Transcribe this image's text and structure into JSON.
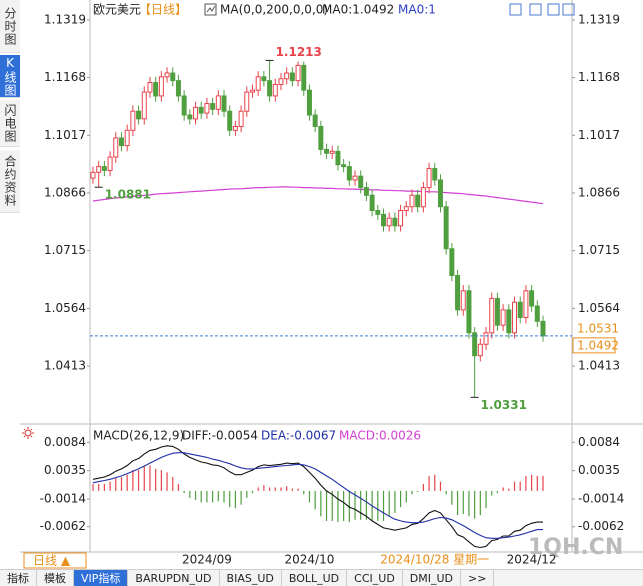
{
  "sidebar": {
    "tabs": [
      "分时图",
      "K线图",
      "闪电图",
      "合约资料"
    ],
    "selected": 1
  },
  "header": {
    "symbol": "欧元美元",
    "period": "【日线】",
    "indicator": "MA(0,0,200,0,0,0)",
    "ma_value": "MA0:1.0492",
    "ma_count": "MA0:1"
  },
  "chart_data": [
    {
      "type": "candlestick",
      "categories": [
        null,
        null,
        null,
        null,
        null,
        null,
        null,
        null,
        null,
        null,
        null,
        null,
        null,
        null,
        null,
        null,
        null,
        null,
        null,
        null,
        "2024/09",
        null,
        null,
        null,
        null,
        null,
        null,
        null,
        null,
        null,
        null,
        null,
        null,
        null,
        null,
        null,
        null,
        null,
        "2024/10",
        null,
        null,
        null,
        null,
        null,
        null,
        null,
        null,
        null,
        null,
        null,
        null,
        null,
        null,
        null,
        null,
        null,
        null,
        null,
        null,
        null,
        null,
        null,
        null,
        null,
        null,
        null,
        null,
        null,
        null,
        null,
        null,
        null,
        null,
        null,
        null,
        null,
        null,
        "2024/12",
        null,
        null
      ],
      "open": [
        1.0905,
        1.092,
        1.0935,
        1.0925,
        1.096,
        1.101,
        1.099,
        1.103,
        1.108,
        1.106,
        1.113,
        1.1155,
        1.112,
        1.117,
        1.118,
        1.116,
        1.112,
        1.107,
        1.106,
        1.109,
        1.1075,
        1.11,
        1.1085,
        1.112,
        1.108,
        1.103,
        1.104,
        1.108,
        1.113,
        1.1135,
        1.117,
        1.116,
        1.112,
        1.115,
        1.1165,
        1.118,
        1.116,
        1.12,
        1.1135,
        1.107,
        1.104,
        1.098,
        1.097,
        1.0975,
        1.094,
        1.0935,
        1.09,
        1.091,
        1.088,
        1.086,
        1.082,
        1.081,
        1.078,
        1.08,
        1.078,
        1.082,
        1.083,
        1.086,
        1.083,
        1.088,
        1.093,
        1.09,
        1.083,
        1.072,
        1.065,
        1.056,
        1.061,
        1.05,
        1.044,
        1.047,
        1.05,
        1.059,
        1.052,
        1.056,
        1.05,
        1.058,
        1.054,
        1.061,
        1.057,
        1.053
      ],
      "high": [
        1.0935,
        1.095,
        1.095,
        1.0975,
        1.1025,
        1.1025,
        1.1045,
        1.1095,
        1.1095,
        1.1145,
        1.117,
        1.117,
        1.1185,
        1.1195,
        1.1195,
        1.1175,
        1.1135,
        1.1085,
        1.1105,
        1.1105,
        1.1115,
        1.1115,
        1.1135,
        1.1135,
        1.1095,
        1.1055,
        1.1095,
        1.1145,
        1.115,
        1.1185,
        1.1185,
        1.1213,
        1.1165,
        1.118,
        1.1195,
        1.1195,
        1.121,
        1.121,
        1.115,
        1.1085,
        1.1055,
        1.0995,
        1.099,
        1.099,
        1.0955,
        1.095,
        1.0925,
        1.0925,
        1.0895,
        1.0875,
        1.0835,
        1.0825,
        1.0815,
        1.0815,
        1.0835,
        1.0845,
        1.0875,
        1.0875,
        1.0895,
        1.0945,
        1.0945,
        1.0915,
        1.0845,
        1.0735,
        1.0665,
        1.0625,
        1.0625,
        1.0515,
        1.0485,
        1.0515,
        1.0605,
        1.0605,
        1.0575,
        1.0575,
        1.0595,
        1.0595,
        1.0625,
        1.0625,
        1.0585,
        1.0545
      ],
      "low": [
        1.089,
        1.0881,
        1.091,
        1.091,
        1.0945,
        1.0975,
        1.0975,
        1.1015,
        1.1045,
        1.1045,
        1.1115,
        1.1105,
        1.1105,
        1.1155,
        1.1145,
        1.1105,
        1.1055,
        1.1045,
        1.1045,
        1.106,
        1.106,
        1.107,
        1.107,
        1.1065,
        1.1015,
        1.1015,
        1.1025,
        1.1065,
        1.1115,
        1.112,
        1.1145,
        1.1105,
        1.1105,
        1.1135,
        1.115,
        1.1145,
        1.1145,
        1.112,
        1.1055,
        1.1025,
        1.0965,
        1.0955,
        1.0955,
        1.0925,
        1.092,
        1.0885,
        1.0885,
        1.0865,
        1.0845,
        1.0805,
        1.0795,
        1.0765,
        1.0765,
        1.0765,
        1.0765,
        1.0805,
        1.0815,
        1.0815,
        1.0815,
        1.0865,
        1.0885,
        1.0815,
        1.0705,
        1.0635,
        1.0545,
        1.0545,
        1.0485,
        1.0331,
        1.0425,
        1.0455,
        1.0485,
        1.0505,
        1.0505,
        1.0485,
        1.0485,
        1.0525,
        1.0525,
        1.0555,
        1.0515,
        1.0477
      ],
      "close": [
        1.092,
        1.0935,
        1.0925,
        1.096,
        1.101,
        1.099,
        1.103,
        1.108,
        1.106,
        1.113,
        1.1155,
        1.112,
        1.117,
        1.118,
        1.116,
        1.112,
        1.107,
        1.106,
        1.109,
        1.1075,
        1.11,
        1.1085,
        1.112,
        1.108,
        1.103,
        1.104,
        1.108,
        1.113,
        1.1135,
        1.117,
        1.116,
        1.112,
        1.115,
        1.1165,
        1.118,
        1.116,
        1.12,
        1.1135,
        1.107,
        1.104,
        1.098,
        1.097,
        1.0975,
        1.094,
        1.0935,
        1.09,
        1.091,
        1.088,
        1.086,
        1.082,
        1.081,
        1.078,
        1.08,
        1.078,
        1.082,
        1.083,
        1.086,
        1.083,
        1.088,
        1.093,
        1.09,
        1.083,
        1.072,
        1.065,
        1.056,
        1.061,
        1.05,
        1.044,
        1.047,
        1.05,
        1.059,
        1.052,
        1.056,
        1.05,
        1.058,
        1.054,
        1.061,
        1.057,
        1.053,
        1.0492
      ],
      "up_color": "#e8424b",
      "down_color": "#4f9f3f",
      "series": [
        {
          "color": "#d23fd2",
          "values": [
            1.0845,
            1.0847,
            1.0849,
            1.0851,
            1.0853,
            1.0854,
            1.0856,
            1.0857,
            1.0859,
            1.086,
            1.0861,
            1.0863,
            1.0864,
            1.0865,
            1.0866,
            1.0867,
            1.0868,
            1.0869,
            1.087,
            1.0871,
            1.0872,
            1.0873,
            1.0874,
            1.0875,
            1.0876,
            1.0877,
            1.0877,
            1.0878,
            1.0879,
            1.088,
            1.088,
            1.0881,
            1.0881,
            1.0882,
            1.0882,
            1.0881,
            1.0881,
            1.088,
            1.088,
            1.0879,
            1.0879,
            1.0878,
            1.0878,
            1.0877,
            1.0877,
            1.0876,
            1.0876,
            1.0875,
            1.0875,
            1.0874,
            1.0874,
            1.0873,
            1.0873,
            1.0872,
            1.0872,
            1.0871,
            1.0871,
            1.087,
            1.087,
            1.0869,
            1.0869,
            1.0868,
            1.0867,
            1.0866,
            1.0865,
            1.0864,
            1.0862,
            1.0861,
            1.0859,
            1.0858,
            1.0856,
            1.0854,
            1.0852,
            1.085,
            1.0848,
            1.0846,
            1.0844,
            1.0842,
            1.084,
            1.0838
          ]
        }
      ],
      "annotations": [
        {
          "index": 31,
          "value": 1.1213,
          "color": "#e8424b",
          "side": "high"
        },
        {
          "index": 1,
          "value": 1.0881,
          "color": "#4f9f3f",
          "side": "low"
        },
        {
          "index": 67,
          "value": 1.0331,
          "color": "#4f9f3f",
          "side": "low"
        }
      ],
      "last_price": 1.0492,
      "reference_price": 1.0531,
      "crosshair": {
        "index": 60,
        "label": "2024/10/28 星期一"
      },
      "ylim": [
        1.0277,
        1.1358
      ],
      "yticks": [
        1.1319,
        1.1168,
        1.1017,
        1.0866,
        1.0715,
        1.0564,
        1.0413
      ]
    },
    {
      "type": "macd",
      "title": "MACD(26,12,9)",
      "diff_label": "DIFF:-0.0054",
      "dea_label": "DEA:-0.0067",
      "macd_label": "MACD:0.0026",
      "diff": [
        0.002,
        0.0022,
        0.0024,
        0.0028,
        0.0034,
        0.0038,
        0.0044,
        0.0052,
        0.0056,
        0.0064,
        0.007,
        0.0072,
        0.0076,
        0.0078,
        0.0077,
        0.0072,
        0.0064,
        0.0058,
        0.0054,
        0.005,
        0.0048,
        0.0045,
        0.0044,
        0.004,
        0.0033,
        0.0028,
        0.0028,
        0.0032,
        0.0036,
        0.0042,
        0.0045,
        0.0044,
        0.0045,
        0.0046,
        0.0048,
        0.0047,
        0.0048,
        0.0042,
        0.0032,
        0.0022,
        0.001,
        0,
        -0.0006,
        -0.0014,
        -0.002,
        -0.0028,
        -0.0032,
        -0.0038,
        -0.0044,
        -0.0052,
        -0.0058,
        -0.0064,
        -0.0066,
        -0.0068,
        -0.0066,
        -0.0064,
        -0.0058,
        -0.0056,
        -0.0048,
        -0.0038,
        -0.0034,
        -0.0038,
        -0.005,
        -0.0062,
        -0.0076,
        -0.008,
        -0.0088,
        -0.0096,
        -0.0098,
        -0.0096,
        -0.0086,
        -0.0084,
        -0.0078,
        -0.0078,
        -0.007,
        -0.0068,
        -0.006,
        -0.0056,
        -0.0054,
        -0.0054
      ],
      "dea": [
        0.0014,
        0.0016,
        0.0018,
        0.002,
        0.0023,
        0.0026,
        0.003,
        0.0034,
        0.0038,
        0.0043,
        0.0048,
        0.0053,
        0.0058,
        0.0062,
        0.0065,
        0.0066,
        0.0066,
        0.0064,
        0.0062,
        0.006,
        0.0058,
        0.0055,
        0.0053,
        0.005,
        0.0047,
        0.0043,
        0.004,
        0.0038,
        0.0038,
        0.0039,
        0.004,
        0.0041,
        0.0042,
        0.0043,
        0.0044,
        0.0045,
        0.0046,
        0.0045,
        0.0042,
        0.0038,
        0.0032,
        0.0026,
        0.002,
        0.0013,
        0.0006,
        -0.0001,
        -0.0007,
        -0.0013,
        -0.0019,
        -0.0026,
        -0.0032,
        -0.0038,
        -0.0044,
        -0.0049,
        -0.0052,
        -0.0054,
        -0.0055,
        -0.0055,
        -0.0054,
        -0.0051,
        -0.0048,
        -0.0046,
        -0.0047,
        -0.005,
        -0.0055,
        -0.006,
        -0.0066,
        -0.0072,
        -0.0077,
        -0.0081,
        -0.0082,
        -0.0082,
        -0.0081,
        -0.008,
        -0.0078,
        -0.0076,
        -0.0073,
        -0.007,
        -0.0067,
        -0.0067
      ],
      "hist": [
        0.0012,
        0.0012,
        0.0012,
        0.0016,
        0.0022,
        0.0024,
        0.0028,
        0.0036,
        0.0036,
        0.0042,
        0.0044,
        0.0038,
        0.0036,
        0.0032,
        0.0024,
        0.0012,
        -0.0004,
        -0.0012,
        -0.0016,
        -0.002,
        -0.002,
        -0.002,
        -0.0018,
        -0.002,
        -0.0028,
        -0.003,
        -0.0024,
        -0.0012,
        -0.0004,
        0.0006,
        0.001,
        0.0006,
        0.0006,
        0.0006,
        0.0008,
        0.0004,
        0.0004,
        -0.0006,
        -0.002,
        -0.0032,
        -0.0044,
        -0.0052,
        -0.0052,
        -0.0054,
        -0.0052,
        -0.0054,
        -0.005,
        -0.005,
        -0.005,
        -0.0052,
        -0.0052,
        -0.0052,
        -0.0044,
        -0.0038,
        -0.0028,
        -0.002,
        -0.0006,
        -0.0002,
        0.0012,
        0.0026,
        0.0028,
        0.0016,
        -0.0006,
        -0.0024,
        -0.0042,
        -0.004,
        -0.0044,
        -0.0048,
        -0.0042,
        -0.003,
        -0.0008,
        -0.0004,
        0.0006,
        0.0004,
        0.0016,
        0.0016,
        0.0026,
        0.0028,
        0.0026,
        0.0026
      ],
      "diff_color": "#111111",
      "dea_color": "#1f2fa8",
      "up_color": "#e8424b",
      "down_color": "#4f9f3f",
      "ylim": [
        -0.0104,
        0.0114
      ],
      "yticks": [
        0.0084,
        0.0035,
        -0.0014,
        -0.0062
      ]
    }
  ],
  "footer": {
    "period_button": "日线 ▲",
    "watermark": "1QH.CN"
  },
  "tabs": [
    "指标",
    "模板",
    "VIP指标",
    "BARUPDN_UD",
    "BIAS_UD",
    "BOLL_UD",
    "CCI_UD",
    "DMI_UD",
    ">>"
  ],
  "selected_tab": 2
}
